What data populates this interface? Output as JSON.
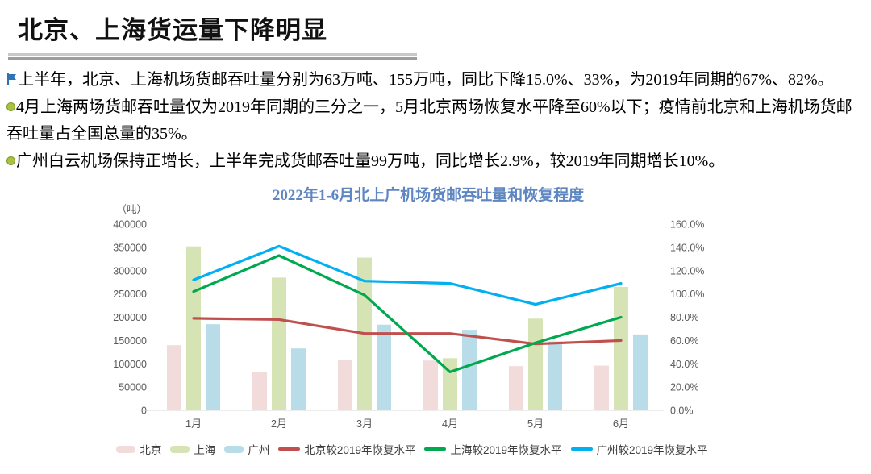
{
  "slide": {
    "title": "北京、上海货运量下降明显",
    "bullets": [
      {
        "icon": "flag-icon",
        "text": "上半年，北京、上海机场货邮吞吐量分别为63万吨、155万吨，同比下降15.0%、33%，为2019年同期的67%、82%。"
      },
      {
        "icon": "dot-icon",
        "text": "4月上海两场货邮吞吐量仅为2019年同期的三分之一，5月北京两场恢复水平降至60%以下；疫情前北京和上海机场货邮吞吐量占全国总量的35%。"
      },
      {
        "icon": "dot-icon",
        "text": "广州白云机场保持正增长，上半年完成货邮吞吐量99万吨，同比增长2.9%，较2019年同期增长10%。"
      }
    ]
  },
  "chart_data": {
    "type": "bar+line combo",
    "title": "2022年1-6月北上广机场货邮吞吐量和恢复程度",
    "unit_label": "（吨）",
    "categories": [
      "1月",
      "2月",
      "3月",
      "4月",
      "5月",
      "6月"
    ],
    "bar_series": [
      {
        "name": "北京",
        "color": "#f2dcdb",
        "values": [
          140000,
          82000,
          108000,
          107000,
          95000,
          96000
        ]
      },
      {
        "name": "上海",
        "color": "#d6e3b5",
        "values": [
          352000,
          285000,
          328000,
          112000,
          197000,
          265000
        ]
      },
      {
        "name": "广州",
        "color": "#b8dde8",
        "values": [
          185000,
          133000,
          184000,
          173000,
          148000,
          163000
        ]
      }
    ],
    "line_series": [
      {
        "name": "北京较2019年恢复水平",
        "color": "#c0504d",
        "values_pct": [
          79,
          78,
          66,
          66,
          57,
          60
        ]
      },
      {
        "name": "上海较2019年恢复水平",
        "color": "#00a94f",
        "values_pct": [
          102,
          133,
          99,
          33,
          58,
          80
        ]
      },
      {
        "name": "广州较2019年恢复水平",
        "color": "#00b0f0",
        "values_pct": [
          112,
          141,
          111,
          109,
          91,
          109
        ]
      }
    ],
    "left_axis": {
      "min": 0,
      "max": 400000,
      "step": 50000,
      "ticks": [
        "0",
        "50000",
        "100000",
        "150000",
        "200000",
        "250000",
        "300000",
        "350000",
        "400000"
      ]
    },
    "right_axis": {
      "min": 0,
      "max": 160,
      "step": 20,
      "ticks": [
        "0.0%",
        "20.0%",
        "40.0%",
        "60.0%",
        "80.0%",
        "100.0%",
        "120.0%",
        "140.0%",
        "160.0%"
      ]
    },
    "grid": false,
    "legend_position": "bottom"
  }
}
